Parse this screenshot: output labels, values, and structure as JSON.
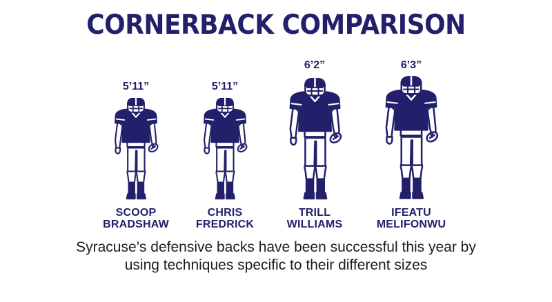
{
  "title": "CORNERBACK COMPARISON",
  "players": [
    {
      "height": "5’11”",
      "first": "SCOOP",
      "last": "BRADSHAW",
      "height_in": 71
    },
    {
      "height": "5’11”",
      "first": "CHRIS",
      "last": "FREDRICK",
      "height_in": 71
    },
    {
      "height": "6’2”",
      "first": "TRILL",
      "last": "WILLIAMS",
      "height_in": 74
    },
    {
      "height": "6’3”",
      "first": "IFEATU",
      "last": "MELIFONWU",
      "height_in": 75
    }
  ],
  "caption": {
    "line1": "Syracuse’s defensive backs have been successful this year by",
    "line2": "using techniques specific to their different sizes"
  },
  "colors": {
    "navy": "#22206b",
    "text": "#1c1c1c",
    "outline": "#22206b"
  },
  "icons": {
    "figure": "football-player-icon"
  }
}
